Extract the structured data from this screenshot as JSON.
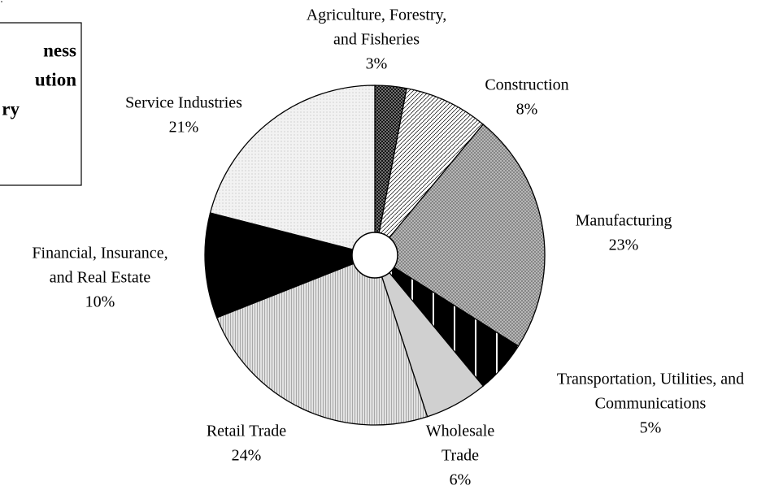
{
  "chart_data": {
    "type": "pie",
    "title": [
      "ness",
      "ution",
      "ry"
    ],
    "categories": [
      [
        "Agriculture, Forestry,",
        "and Fisheries"
      ],
      [
        "Construction"
      ],
      [
        "Manufacturing"
      ],
      [
        "Transportation, Utilities, and",
        "Communications"
      ],
      [
        "Wholesale",
        "Trade"
      ],
      [
        "Retail Trade"
      ],
      [
        "Financial, Insurance,",
        "and Real Estate"
      ],
      [
        "Service Industries"
      ]
    ],
    "values": [
      3,
      8,
      23,
      5,
      6,
      24,
      10,
      21
    ],
    "value_labels": [
      "3%",
      "8%",
      "23%",
      "5%",
      "6%",
      "24%",
      "10%",
      "21%"
    ],
    "colors": [
      "#888888",
      "#ffffff",
      "#bdbdbd",
      "#000000",
      "#d0d0d0",
      "#e2e2e2",
      "#000000",
      "#f2f2f2"
    ]
  }
}
